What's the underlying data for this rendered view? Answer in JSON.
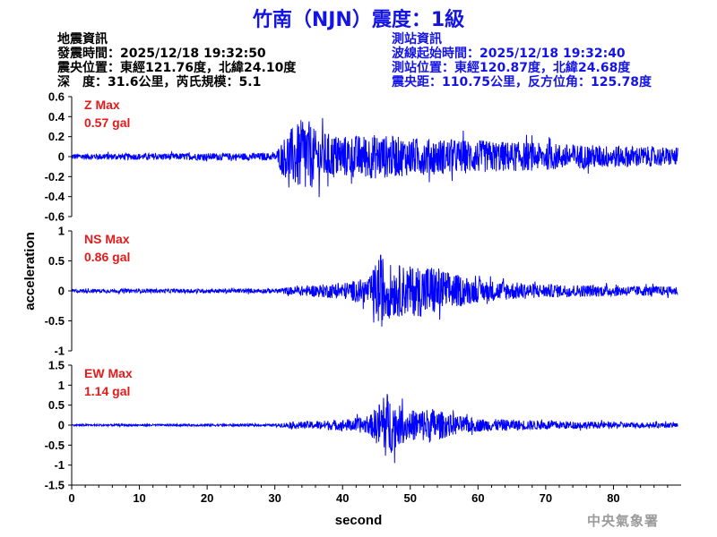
{
  "title": "竹南（NJN）震度：1級",
  "quake_info": {
    "heading": "地震資訊",
    "origin_time": "發震時間：2025/12/18 19:32:50",
    "epicenter": "震央位置：東經121.76度，北緯24.10度",
    "depth_magnitude": "深　度：31.6公里，芮氏規模：5.1"
  },
  "station_info": {
    "heading": "測站資訊",
    "wave_start": "波線起始時間：2025/12/18 19:32:40",
    "location": "測站位置：東經120.87度，北緯24.68度",
    "distance": "震央距：110.75公里，反方位角：125.78度"
  },
  "footer": "中央氣象署",
  "colors": {
    "trace": "#0000ff",
    "title": "#1414e6",
    "peak_label": "#e41a1a",
    "station_text": "#1414e6",
    "footer": "#9b9b9b"
  },
  "chart_data": {
    "type": "line",
    "xlabel": "second",
    "ylabel": "acceleration",
    "xlim": [
      0,
      90
    ],
    "x_ticks": [
      0,
      10,
      20,
      30,
      40,
      50,
      60,
      70,
      80
    ],
    "grid": false,
    "panels": [
      {
        "component": "Z",
        "peak_title": "Z Max",
        "peak_value": "0.57 gal",
        "ylim": [
          -0.6,
          0.6
        ],
        "y_ticks": [
          -0.6,
          -0.4,
          -0.2,
          0,
          0.2,
          0.4,
          0.6
        ],
        "y_tick_labels": [
          "-0.6",
          "-0.4",
          "-0.2",
          "0",
          "0.2",
          "0.4",
          "0.6"
        ],
        "envelope": [
          [
            0,
            0.04
          ],
          [
            30,
            0.05
          ],
          [
            31,
            0.2
          ],
          [
            32,
            0.35
          ],
          [
            33.5,
            0.45
          ],
          [
            34.5,
            0.55
          ],
          [
            36,
            0.35
          ],
          [
            40,
            0.28
          ],
          [
            45,
            0.3
          ],
          [
            50,
            0.25
          ],
          [
            60,
            0.22
          ],
          [
            70,
            0.18
          ],
          [
            80,
            0.15
          ],
          [
            89.5,
            0.12
          ]
        ]
      },
      {
        "component": "NS",
        "peak_title": "NS Max",
        "peak_value": "0.86 gal",
        "ylim": [
          -1,
          1
        ],
        "y_ticks": [
          -1,
          -0.5,
          0,
          0.5,
          1
        ],
        "y_tick_labels": [
          "-1",
          "-0.5",
          "0",
          "0.5",
          "1"
        ],
        "envelope": [
          [
            0,
            0.04
          ],
          [
            30,
            0.05
          ],
          [
            33,
            0.1
          ],
          [
            40,
            0.18
          ],
          [
            44,
            0.3
          ],
          [
            45.5,
            0.85
          ],
          [
            47,
            0.6
          ],
          [
            50,
            0.55
          ],
          [
            53,
            0.6
          ],
          [
            56,
            0.4
          ],
          [
            60,
            0.25
          ],
          [
            70,
            0.15
          ],
          [
            80,
            0.12
          ],
          [
            89.5,
            0.1
          ]
        ]
      },
      {
        "component": "EW",
        "peak_title": "EW Max",
        "peak_value": "1.14 gal",
        "ylim": [
          -1.5,
          1.5
        ],
        "y_ticks": [
          -1.5,
          -1,
          -0.5,
          0,
          0.5,
          1,
          1.5
        ],
        "y_tick_labels": [
          "-1.5",
          "-1",
          "-0.5",
          "0",
          "0.5",
          "1",
          "1.5"
        ],
        "envelope": [
          [
            0,
            0.03
          ],
          [
            30,
            0.04
          ],
          [
            32,
            0.1
          ],
          [
            40,
            0.18
          ],
          [
            44,
            0.3
          ],
          [
            45.5,
            0.8
          ],
          [
            46.5,
            1.14
          ],
          [
            48,
            0.7
          ],
          [
            50,
            0.5
          ],
          [
            53,
            0.6
          ],
          [
            56,
            0.35
          ],
          [
            60,
            0.22
          ],
          [
            70,
            0.15
          ],
          [
            80,
            0.1
          ],
          [
            89.5,
            0.08
          ]
        ]
      }
    ]
  }
}
